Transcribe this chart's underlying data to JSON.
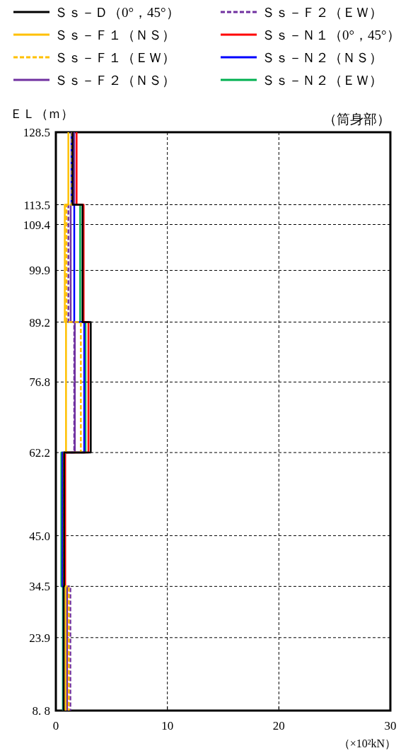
{
  "chart_data": {
    "type": "line",
    "xlabel": "（×10²kN）",
    "ylabel": "ＥＬ（ｍ）",
    "annotations": [
      "（筒身部）"
    ],
    "xlim": [
      0,
      30
    ],
    "xticks": [
      0,
      10,
      20,
      30
    ],
    "ylim": [
      8.8,
      128.5
    ],
    "yticks": [
      {
        "value": 8.8,
        "label": "8. 8"
      },
      23.9,
      34.5,
      {
        "value": 45.0,
        "label": "45.0"
      },
      62.2,
      76.8,
      89.2,
      99.9,
      109.4,
      113.5,
      128.5
    ],
    "grid": true,
    "legend": "top",
    "line_style": "solid",
    "series": [
      {
        "name": "Ｓｓ－Ｄ（0°，45°）",
        "color": "#000000",
        "x": [
          1.5,
          1.5,
          2.39,
          2.39,
          3.13,
          3.13,
          0.74,
          0.74,
          0.7,
          0.7
        ],
        "values": [
          128.5,
          113.5,
          113.5,
          89.2,
          89.2,
          62.2,
          62.2,
          34.5,
          34.5,
          8.8
        ]
      },
      {
        "name": "Ｓｓ－Ｆ１（ＮＳ）",
        "color": "#ffc000",
        "x": [
          1.12,
          1.12,
          0.8,
          0.8,
          0.91,
          0.91,
          0.74,
          0.74,
          0.86,
          0.86
        ],
        "values": [
          128.5,
          113.5,
          113.5,
          89.2,
          89.2,
          62.2,
          62.2,
          34.5,
          34.5,
          8.8
        ]
      },
      {
        "name": "Ｓｓ－Ｆ１（ＥＷ）",
        "color": "#ffc000",
        "line_style": "dashed",
        "x": [
          1.44,
          1.44,
          0.95,
          0.95,
          2.24,
          2.24,
          0.74,
          0.74,
          1.16,
          1.16
        ],
        "values": [
          128.5,
          113.5,
          113.5,
          89.2,
          89.2,
          62.2,
          62.2,
          34.5,
          34.5,
          8.8
        ]
      },
      {
        "name": "Ｓｓ－Ｆ２（ＮＳ）",
        "color": "#7030a0",
        "x": [
          1.65,
          1.65,
          1.33,
          1.33,
          1.7,
          1.7,
          0.7,
          0.7,
          1.0,
          1.0
        ],
        "values": [
          128.5,
          113.5,
          113.5,
          89.2,
          89.2,
          62.2,
          62.2,
          34.5,
          34.5,
          8.8
        ]
      },
      {
        "name": "Ｓｓ－Ｆ２（ＥＷ）",
        "color": "#7030a0",
        "line_style": "dashed",
        "x": [
          1.54,
          1.54,
          1.12,
          1.12,
          1.65,
          1.65,
          0.7,
          0.7,
          1.3,
          1.3
        ],
        "values": [
          128.5,
          113.5,
          113.5,
          89.2,
          89.2,
          62.2,
          62.2,
          34.5,
          34.5,
          8.8
        ]
      },
      {
        "name": "Ｓｓ－Ｎ１（0°，45°）",
        "color": "#ff0000",
        "x": [
          1.86,
          1.86,
          2.49,
          2.49,
          2.92,
          2.92,
          0.84,
          0.84,
          1.01,
          1.01
        ],
        "values": [
          128.5,
          113.5,
          113.5,
          89.2,
          89.2,
          62.2,
          62.2,
          34.5,
          34.5,
          8.8
        ]
      },
      {
        "name": "Ｓｓ－Ｎ２（ＮＳ）",
        "color": "#0000ff",
        "x": [
          1.4,
          1.4,
          1.65,
          1.65,
          2.54,
          2.54,
          0.59,
          0.59,
          0.7,
          0.7
        ],
        "values": [
          128.5,
          113.5,
          113.5,
          89.2,
          89.2,
          62.2,
          62.2,
          34.5,
          34.5,
          8.8
        ]
      },
      {
        "name": "Ｓｓ－Ｎ２（ＥＷ）",
        "color": "#00b050",
        "x": [
          1.44,
          1.44,
          2.18,
          2.18,
          2.66,
          2.66,
          0.49,
          0.49,
          0.63,
          0.63
        ],
        "values": [
          128.5,
          113.5,
          113.5,
          89.2,
          89.2,
          62.2,
          62.2,
          34.5,
          34.5,
          8.8
        ]
      }
    ]
  }
}
